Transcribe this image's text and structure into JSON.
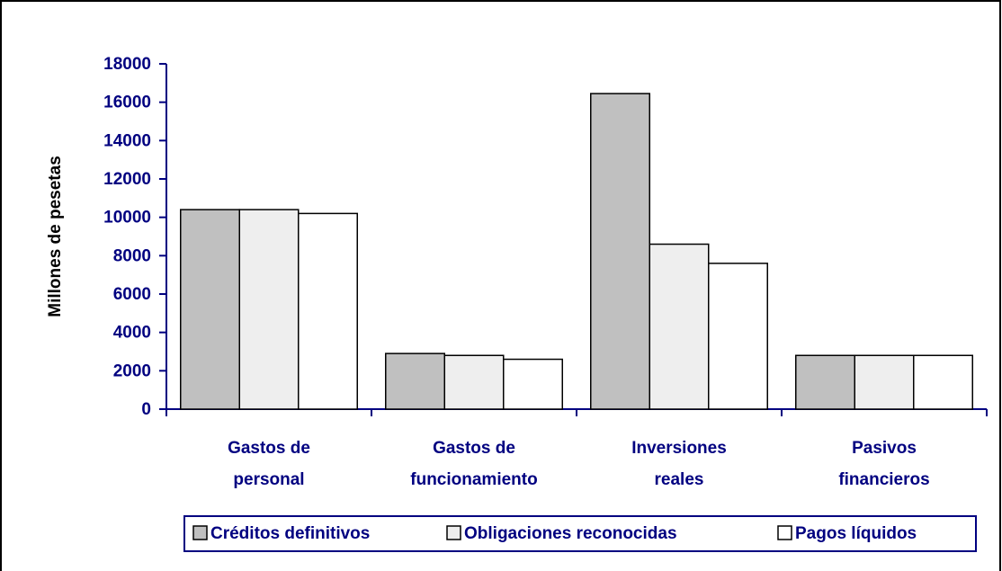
{
  "chart_data": {
    "type": "bar",
    "y_label": "Millones de pesetas",
    "categories": [
      "Gastos de personal",
      "Gastos de funcionamiento",
      "Inversiones reales",
      "Pasivos financieros"
    ],
    "series": [
      {
        "name": "Créditos definitivos",
        "color": "#c0c0c0",
        "values": [
          10400,
          2900,
          16450,
          2800
        ]
      },
      {
        "name": "Obligaciones reconocidas",
        "color": "#eeeeee",
        "values": [
          10400,
          2800,
          8600,
          2800
        ]
      },
      {
        "name": "Pagos líquidos",
        "color": "#ffffff",
        "values": [
          10200,
          2600,
          7600,
          2800
        ]
      }
    ],
    "ylim": [
      0,
      18000
    ],
    "yticks": [
      0,
      2000,
      4000,
      6000,
      8000,
      10000,
      12000,
      14000,
      16000,
      18000
    ],
    "legend": "bottom"
  }
}
